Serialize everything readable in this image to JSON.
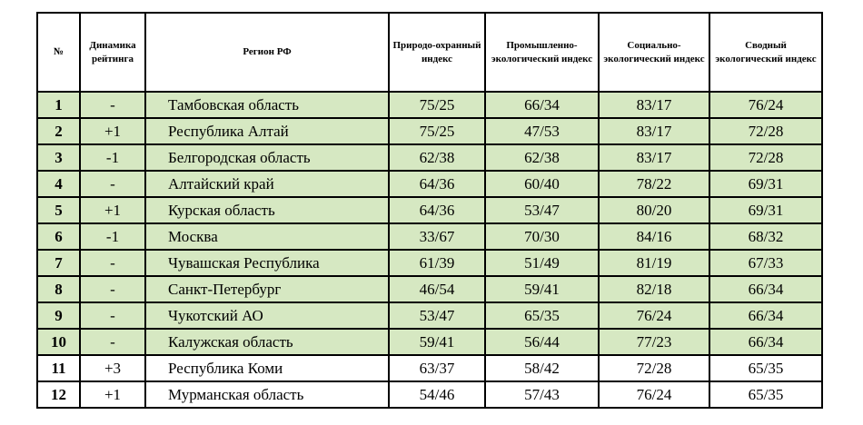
{
  "table": {
    "headers": {
      "num": "№",
      "dynamics": "Динамика рейтинга",
      "region": "Регион РФ",
      "nature": "Природо-охранный индекс",
      "industrial": "Промышленно-экологический индекс",
      "social": "Социально-экологический индекс",
      "summary": "Сводный экологический индекс"
    },
    "highlight_color": "#d6e8c2",
    "rows": [
      {
        "num": "1",
        "dynamics": "-",
        "region": "Тамбовская область",
        "nature": "75/25",
        "industrial": "66/34",
        "social": "83/17",
        "summary": "76/24",
        "highlighted": true
      },
      {
        "num": "2",
        "dynamics": "+1",
        "region": "Республика Алтай",
        "nature": "75/25",
        "industrial": "47/53",
        "social": "83/17",
        "summary": "72/28",
        "highlighted": true
      },
      {
        "num": "3",
        "dynamics": "-1",
        "region": "Белгородская область",
        "nature": "62/38",
        "industrial": "62/38",
        "social": "83/17",
        "summary": "72/28",
        "highlighted": true
      },
      {
        "num": "4",
        "dynamics": "-",
        "region": "Алтайский край",
        "nature": "64/36",
        "industrial": "60/40",
        "social": "78/22",
        "summary": "69/31",
        "highlighted": true
      },
      {
        "num": "5",
        "dynamics": "+1",
        "region": "Курская область",
        "nature": "64/36",
        "industrial": "53/47",
        "social": "80/20",
        "summary": "69/31",
        "highlighted": true
      },
      {
        "num": "6",
        "dynamics": "-1",
        "region": "Москва",
        "nature": "33/67",
        "industrial": "70/30",
        "social": "84/16",
        "summary": "68/32",
        "highlighted": true
      },
      {
        "num": "7",
        "dynamics": "-",
        "region": "Чувашская Республика",
        "nature": "61/39",
        "industrial": "51/49",
        "social": "81/19",
        "summary": "67/33",
        "highlighted": true
      },
      {
        "num": "8",
        "dynamics": "-",
        "region": "Санкт-Петербург",
        "nature": "46/54",
        "industrial": "59/41",
        "social": "82/18",
        "summary": "66/34",
        "highlighted": true
      },
      {
        "num": "9",
        "dynamics": "-",
        "region": "Чукотский АО",
        "nature": "53/47",
        "industrial": "65/35",
        "social": "76/24",
        "summary": "66/34",
        "highlighted": true
      },
      {
        "num": "10",
        "dynamics": "-",
        "region": "Калужская область",
        "nature": "59/41",
        "industrial": "56/44",
        "social": "77/23",
        "summary": "66/34",
        "highlighted": true
      },
      {
        "num": "11",
        "dynamics": "+3",
        "region": "Республика Коми",
        "nature": "63/37",
        "industrial": "58/42",
        "social": "72/28",
        "summary": "65/35",
        "highlighted": false
      },
      {
        "num": "12",
        "dynamics": "+1",
        "region": "Мурманская область",
        "nature": "54/46",
        "industrial": "57/43",
        "social": "76/24",
        "summary": "65/35",
        "highlighted": false
      }
    ]
  }
}
